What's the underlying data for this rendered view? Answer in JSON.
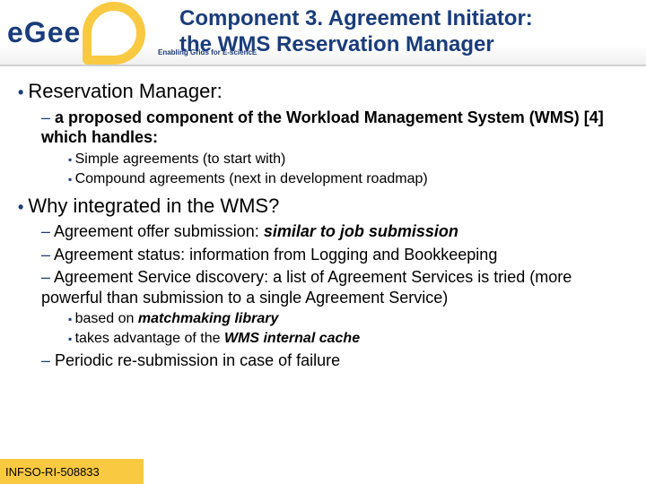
{
  "logo": {
    "text": "eGee"
  },
  "tagline": "Enabling Grids for E-sciencE",
  "title_line1": "Component 3. Agreement Initiator:",
  "title_line2": "the WMS Reservation Manager",
  "b1": {
    "head": "Reservation Manager:",
    "sub1": "a proposed component of the Workload Management System (WMS) [4] which handles:",
    "sub1a": "Simple agreements (to start with)",
    "sub1b": "Compound agreements (next in development roadmap)"
  },
  "b2": {
    "head": "Why integrated in the WMS?",
    "s1a": "Agreement offer submission: ",
    "s1b": "similar to job submission",
    "s2a": "Agreement status: ",
    "s2b": "information from Logging and Bookkeeping",
    "s3a": "Agreement Service discovery: ",
    "s3b": "a list of Agreement Services is tried (more powerful than submission to a single Agreement Service)",
    "s3x1a": "based on ",
    "s3x1b": "matchmaking library",
    "s3x2a": "takes advantage of the ",
    "s3x2b": "WMS internal cache",
    "s4a": "Periodic re-submission ",
    "s4b": "in case of failure"
  },
  "footer": "INFSO-RI-508833"
}
